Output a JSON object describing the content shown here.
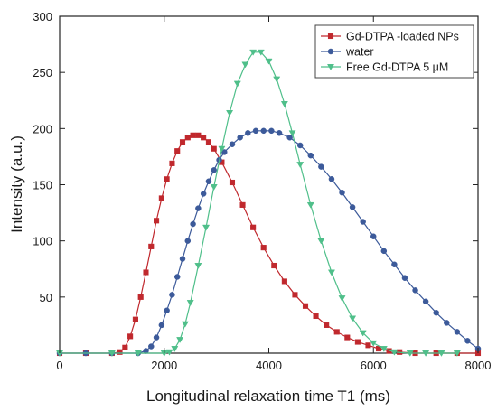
{
  "chart_data": {
    "type": "line",
    "title": "",
    "xlabel": "Longitudinal relaxation time T1 (ms)",
    "ylabel": "Intensity (a.u.)",
    "xlim": [
      0,
      8000
    ],
    "ylim": [
      0,
      300
    ],
    "xticks": [
      0,
      2000,
      4000,
      6000,
      8000
    ],
    "yticks": [
      50,
      100,
      150,
      200,
      250,
      300
    ],
    "grid": false,
    "legend_position": "top-right",
    "series": [
      {
        "name": "Gd-DTPA -loaded NPs",
        "color": "#c0282d",
        "marker": "square",
        "points": [
          [
            0,
            0
          ],
          [
            500,
            0
          ],
          [
            1000,
            0
          ],
          [
            1150,
            1
          ],
          [
            1250,
            5
          ],
          [
            1350,
            15
          ],
          [
            1450,
            30
          ],
          [
            1550,
            50
          ],
          [
            1650,
            72
          ],
          [
            1750,
            95
          ],
          [
            1850,
            118
          ],
          [
            1950,
            138
          ],
          [
            2050,
            155
          ],
          [
            2150,
            169
          ],
          [
            2250,
            180
          ],
          [
            2350,
            188
          ],
          [
            2450,
            192
          ],
          [
            2550,
            194
          ],
          [
            2650,
            194
          ],
          [
            2750,
            192
          ],
          [
            2850,
            188
          ],
          [
            2950,
            182
          ],
          [
            3100,
            170
          ],
          [
            3300,
            152
          ],
          [
            3500,
            132
          ],
          [
            3700,
            112
          ],
          [
            3900,
            94
          ],
          [
            4100,
            78
          ],
          [
            4300,
            64
          ],
          [
            4500,
            52
          ],
          [
            4700,
            42
          ],
          [
            4900,
            33
          ],
          [
            5100,
            25
          ],
          [
            5300,
            19
          ],
          [
            5500,
            14
          ],
          [
            5700,
            10
          ],
          [
            5900,
            7
          ],
          [
            6100,
            4
          ],
          [
            6300,
            2
          ],
          [
            6500,
            1
          ],
          [
            6800,
            0
          ],
          [
            7200,
            0
          ],
          [
            7600,
            0
          ],
          [
            8000,
            0
          ]
        ]
      },
      {
        "name": "water",
        "color": "#3c5a9a",
        "marker": "circle",
        "points": [
          [
            0,
            0
          ],
          [
            500,
            0
          ],
          [
            1000,
            0
          ],
          [
            1500,
            0
          ],
          [
            1650,
            2
          ],
          [
            1750,
            6
          ],
          [
            1850,
            14
          ],
          [
            1950,
            25
          ],
          [
            2050,
            38
          ],
          [
            2150,
            52
          ],
          [
            2250,
            68
          ],
          [
            2350,
            84
          ],
          [
            2450,
            100
          ],
          [
            2550,
            115
          ],
          [
            2650,
            129
          ],
          [
            2750,
            142
          ],
          [
            2850,
            153
          ],
          [
            2950,
            163
          ],
          [
            3050,
            172
          ],
          [
            3150,
            179
          ],
          [
            3300,
            186
          ],
          [
            3450,
            192
          ],
          [
            3600,
            196
          ],
          [
            3750,
            198
          ],
          [
            3900,
            198
          ],
          [
            4050,
            198
          ],
          [
            4200,
            196
          ],
          [
            4400,
            192
          ],
          [
            4600,
            185
          ],
          [
            4800,
            176
          ],
          [
            5000,
            166
          ],
          [
            5200,
            155
          ],
          [
            5400,
            143
          ],
          [
            5600,
            130
          ],
          [
            5800,
            117
          ],
          [
            6000,
            104
          ],
          [
            6200,
            91
          ],
          [
            6400,
            79
          ],
          [
            6600,
            67
          ],
          [
            6800,
            56
          ],
          [
            7000,
            46
          ],
          [
            7200,
            36
          ],
          [
            7400,
            27
          ],
          [
            7600,
            19
          ],
          [
            7800,
            11
          ],
          [
            8000,
            4
          ]
        ]
      },
      {
        "name": "Free Gd-DTPA 5 μM",
        "color": "#4fbf8a",
        "marker": "triangle-down",
        "points": [
          [
            0,
            0
          ],
          [
            1000,
            0
          ],
          [
            1500,
            0
          ],
          [
            2000,
            0
          ],
          [
            2100,
            1
          ],
          [
            2200,
            4
          ],
          [
            2300,
            12
          ],
          [
            2400,
            26
          ],
          [
            2500,
            45
          ],
          [
            2650,
            78
          ],
          [
            2800,
            112
          ],
          [
            2950,
            148
          ],
          [
            3100,
            182
          ],
          [
            3250,
            214
          ],
          [
            3400,
            240
          ],
          [
            3550,
            257
          ],
          [
            3700,
            268
          ],
          [
            3850,
            268
          ],
          [
            4000,
            260
          ],
          [
            4150,
            244
          ],
          [
            4300,
            222
          ],
          [
            4450,
            196
          ],
          [
            4600,
            168
          ],
          [
            4800,
            132
          ],
          [
            5000,
            100
          ],
          [
            5200,
            72
          ],
          [
            5400,
            49
          ],
          [
            5600,
            31
          ],
          [
            5800,
            18
          ],
          [
            6000,
            9
          ],
          [
            6200,
            4
          ],
          [
            6400,
            1
          ],
          [
            6700,
            0
          ],
          [
            7000,
            0
          ],
          [
            7300,
            0
          ],
          [
            7600,
            0
          ]
        ]
      }
    ]
  }
}
